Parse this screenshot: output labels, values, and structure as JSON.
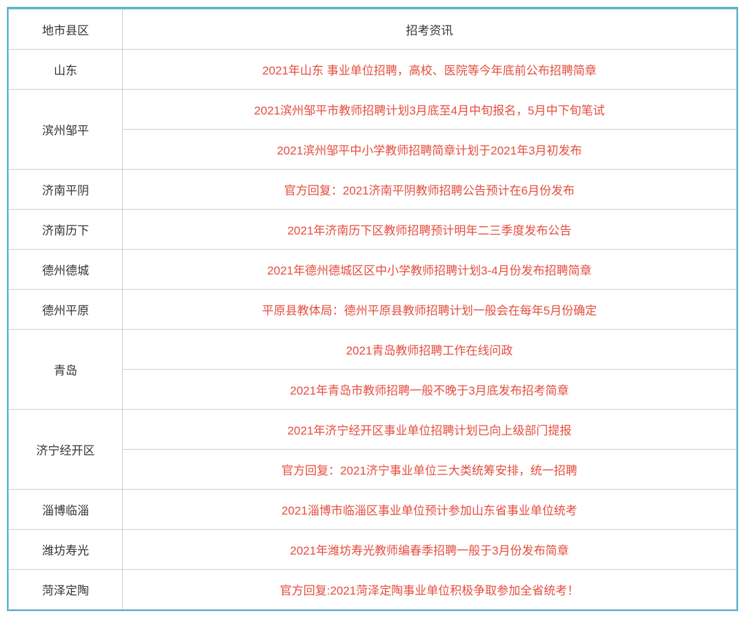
{
  "table": {
    "headers": {
      "region": "地市县区",
      "info": "招考资讯"
    },
    "rows": [
      {
        "region": "山东",
        "rowspan": 1,
        "infos": [
          "2021年山东 事业单位招聘，高校、医院等今年底前公布招聘简章"
        ]
      },
      {
        "region": "滨州邹平",
        "rowspan": 2,
        "infos": [
          "2021滨州邹平市教师招聘计划3月底至4月中旬报名，5月中下旬笔试",
          "2021滨州邹平中小学教师招聘简章计划于2021年3月初发布"
        ]
      },
      {
        "region": "济南平阴",
        "rowspan": 1,
        "infos": [
          "官方回复：2021济南平阴教师招聘公告预计在6月份发布"
        ]
      },
      {
        "region": "济南历下",
        "rowspan": 1,
        "infos": [
          "2021年济南历下区教师招聘预计明年二三季度发布公告"
        ]
      },
      {
        "region": "德州德城",
        "rowspan": 1,
        "infos": [
          "2021年德州德城区区中小学教师招聘计划3-4月份发布招聘简章"
        ]
      },
      {
        "region": "德州平原",
        "rowspan": 1,
        "infos": [
          "平原县教体局：德州平原县教师招聘计划一般会在每年5月份确定"
        ]
      },
      {
        "region": "青岛",
        "rowspan": 2,
        "infos": [
          "2021青岛教师招聘工作在线问政",
          "2021年青岛市教师招聘一般不晚于3月底发布招考简章"
        ]
      },
      {
        "region": "济宁经开区",
        "rowspan": 2,
        "infos": [
          "2021年济宁经开区事业单位招聘计划已向上级部门提报",
          "官方回复：2021济宁事业单位三大类统筹安排，统一招聘"
        ]
      },
      {
        "region": "淄博临淄",
        "rowspan": 1,
        "infos": [
          "2021淄博市临淄区事业单位预计参加山东省事业单位统考"
        ]
      },
      {
        "region": "潍坊寿光",
        "rowspan": 1,
        "infos": [
          "2021年潍坊寿光教师编春季招聘一般于3月份发布简章"
        ]
      },
      {
        "region": "菏泽定陶",
        "rowspan": 1,
        "infos": [
          "官方回复:2021菏泽定陶事业单位积极争取参加全省统考！"
        ]
      }
    ],
    "styling": {
      "border_color": "#4db8d4",
      "cell_border_color": "#cccccc",
      "header_text_color": "#333333",
      "region_text_color": "#333333",
      "info_text_color": "#e74c3c",
      "background_color": "#ffffff",
      "font_size": 17,
      "cell_padding": 16,
      "region_column_width": 165
    }
  }
}
